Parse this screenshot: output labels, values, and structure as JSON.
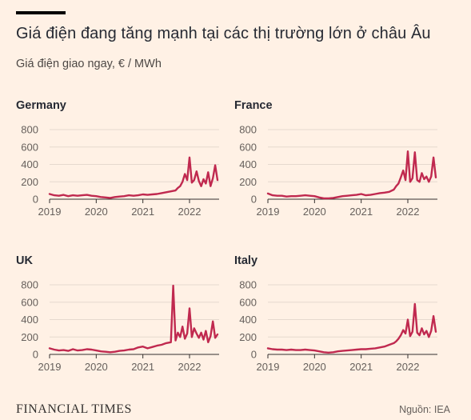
{
  "header": {
    "title": "Giá điện đang tăng mạnh tại các thị trường lớn ở châu Âu",
    "subtitle": "Giá điện giao ngay, € / MWh"
  },
  "footer": {
    "logo": "FINANCIAL TIMES",
    "source": "Nguồn: IEA"
  },
  "colors": {
    "background": "#fff1e5",
    "line": "#c0294f",
    "grid": "#e6d9ce",
    "axis_text": "#66605c"
  },
  "chart_data": [
    {
      "type": "line",
      "title": "Germany",
      "ylim": [
        0,
        800
      ],
      "yticks": [
        0,
        200,
        400,
        600,
        800
      ],
      "xlim": [
        2019,
        2022.6
      ],
      "xticks": [
        2019,
        2020,
        2021,
        2022
      ],
      "series": [
        {
          "x": [
            2019.0,
            2019.1,
            2019.2,
            2019.3,
            2019.4,
            2019.5,
            2019.6,
            2019.7,
            2019.8,
            2019.9,
            2020.0,
            2020.1,
            2020.2,
            2020.3,
            2020.4,
            2020.5,
            2020.6,
            2020.7,
            2020.8,
            2020.9,
            2021.0,
            2021.1,
            2021.2,
            2021.3,
            2021.4,
            2021.5,
            2021.6,
            2021.7,
            2021.75,
            2021.8,
            2021.85,
            2021.9,
            2021.95,
            2022.0,
            2022.05,
            2022.1,
            2022.15,
            2022.2,
            2022.25,
            2022.3,
            2022.35,
            2022.4,
            2022.45,
            2022.5,
            2022.55,
            2022.6
          ],
          "y": [
            60,
            45,
            40,
            50,
            35,
            45,
            40,
            45,
            50,
            40,
            35,
            25,
            20,
            15,
            25,
            30,
            35,
            45,
            40,
            45,
            55,
            50,
            55,
            60,
            70,
            80,
            90,
            100,
            130,
            150,
            200,
            290,
            220,
            480,
            190,
            220,
            320,
            210,
            150,
            230,
            180,
            310,
            150,
            240,
            390,
            220
          ]
        }
      ]
    },
    {
      "type": "line",
      "title": "France",
      "ylim": [
        0,
        800
      ],
      "yticks": [
        0,
        200,
        400,
        600,
        800
      ],
      "xlim": [
        2019,
        2022.6
      ],
      "xticks": [
        2019,
        2020,
        2021,
        2022
      ],
      "series": [
        {
          "x": [
            2019.0,
            2019.1,
            2019.2,
            2019.3,
            2019.4,
            2019.5,
            2019.6,
            2019.7,
            2019.8,
            2019.9,
            2020.0,
            2020.1,
            2020.2,
            2020.3,
            2020.4,
            2020.5,
            2020.6,
            2020.7,
            2020.8,
            2020.9,
            2021.0,
            2021.1,
            2021.2,
            2021.3,
            2021.4,
            2021.5,
            2021.6,
            2021.7,
            2021.75,
            2021.8,
            2021.85,
            2021.9,
            2021.95,
            2022.0,
            2022.05,
            2022.1,
            2022.15,
            2022.2,
            2022.25,
            2022.3,
            2022.35,
            2022.4,
            2022.45,
            2022.5,
            2022.55,
            2022.6
          ],
          "y": [
            65,
            45,
            40,
            40,
            30,
            35,
            35,
            40,
            45,
            40,
            35,
            20,
            10,
            10,
            15,
            25,
            35,
            40,
            45,
            50,
            60,
            45,
            50,
            60,
            70,
            75,
            85,
            110,
            150,
            180,
            250,
            330,
            220,
            550,
            200,
            240,
            540,
            220,
            200,
            300,
            230,
            260,
            200,
            260,
            480,
            250
          ]
        }
      ]
    },
    {
      "type": "line",
      "title": "UK",
      "ylim": [
        0,
        800
      ],
      "yticks": [
        0,
        200,
        400,
        600,
        800
      ],
      "xlim": [
        2019,
        2022.6
      ],
      "xticks": [
        2019,
        2020,
        2021,
        2022
      ],
      "series": [
        {
          "x": [
            2019.0,
            2019.1,
            2019.2,
            2019.3,
            2019.4,
            2019.5,
            2019.6,
            2019.7,
            2019.8,
            2019.9,
            2020.0,
            2020.1,
            2020.2,
            2020.3,
            2020.4,
            2020.5,
            2020.6,
            2020.7,
            2020.8,
            2020.9,
            2021.0,
            2021.1,
            2021.2,
            2021.3,
            2021.4,
            2021.5,
            2021.6,
            2021.65,
            2021.7,
            2021.75,
            2021.8,
            2021.85,
            2021.9,
            2021.95,
            2022.0,
            2022.05,
            2022.1,
            2022.15,
            2022.2,
            2022.25,
            2022.3,
            2022.35,
            2022.4,
            2022.45,
            2022.5,
            2022.55,
            2022.6
          ],
          "y": [
            70,
            55,
            45,
            50,
            40,
            60,
            45,
            50,
            60,
            55,
            45,
            35,
            30,
            25,
            30,
            40,
            45,
            55,
            60,
            80,
            90,
            70,
            85,
            100,
            110,
            130,
            140,
            790,
            160,
            250,
            200,
            320,
            180,
            240,
            530,
            200,
            300,
            240,
            190,
            250,
            170,
            270,
            140,
            210,
            380,
            190,
            230
          ]
        }
      ]
    },
    {
      "type": "line",
      "title": "Italy",
      "ylim": [
        0,
        800
      ],
      "yticks": [
        0,
        200,
        400,
        600,
        800
      ],
      "xlim": [
        2019,
        2022.6
      ],
      "xticks": [
        2019,
        2020,
        2021,
        2022
      ],
      "series": [
        {
          "x": [
            2019.0,
            2019.1,
            2019.2,
            2019.3,
            2019.4,
            2019.5,
            2019.6,
            2019.7,
            2019.8,
            2019.9,
            2020.0,
            2020.1,
            2020.2,
            2020.3,
            2020.4,
            2020.5,
            2020.6,
            2020.7,
            2020.8,
            2020.9,
            2021.0,
            2021.1,
            2021.2,
            2021.3,
            2021.4,
            2021.5,
            2021.6,
            2021.7,
            2021.75,
            2021.8,
            2021.85,
            2021.9,
            2021.95,
            2022.0,
            2022.05,
            2022.1,
            2022.15,
            2022.2,
            2022.25,
            2022.3,
            2022.35,
            2022.4,
            2022.45,
            2022.5,
            2022.55,
            2022.6
          ],
          "y": [
            70,
            60,
            55,
            55,
            50,
            55,
            50,
            50,
            55,
            50,
            45,
            35,
            25,
            20,
            25,
            35,
            40,
            45,
            50,
            55,
            60,
            60,
            65,
            70,
            80,
            90,
            110,
            130,
            150,
            180,
            220,
            280,
            240,
            400,
            210,
            260,
            580,
            250,
            220,
            300,
            230,
            270,
            200,
            270,
            440,
            260
          ]
        }
      ]
    }
  ]
}
